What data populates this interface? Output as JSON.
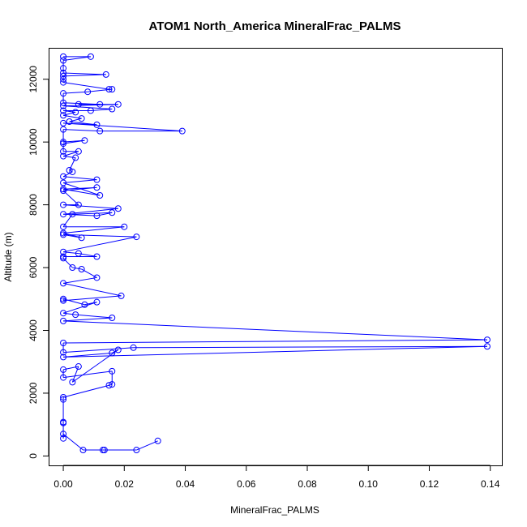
{
  "chart_data": {
    "type": "line",
    "title": "ATOM1 North_America MineralFrac_PALMS",
    "xlabel": "MineralFrac_PALMS",
    "ylabel": "Altitude (m)",
    "xlim": [
      -0.0048,
      0.1438
    ],
    "ylim": [
      -300,
      13000
    ],
    "xticks": [
      0.0,
      0.02,
      0.04,
      0.06,
      0.08,
      0.1,
      0.12,
      0.14
    ],
    "xtick_labels": [
      "0.00",
      "0.02",
      "0.04",
      "0.06",
      "0.08",
      "0.10",
      "0.12",
      "0.14"
    ],
    "yticks": [
      0,
      2000,
      4000,
      6000,
      8000,
      10000,
      12000
    ],
    "ytick_labels": [
      "0",
      "2000",
      "4000",
      "6000",
      "8000",
      "10000",
      "12000"
    ],
    "grid": false,
    "color": "#0000ff",
    "marker": "open-circle",
    "series": [
      {
        "points": [
          [
            0.031,
            480
          ],
          [
            0.024,
            190
          ],
          [
            0.013,
            190
          ],
          [
            0.0135,
            190
          ],
          [
            0.0065,
            190
          ],
          [
            0.0,
            700
          ],
          [
            0.0,
            560
          ],
          [
            0.0,
            1080
          ],
          [
            0.0,
            1050
          ],
          [
            0.0,
            1800
          ],
          [
            0.0,
            1870
          ],
          [
            0.015,
            2250
          ],
          [
            0.016,
            2280
          ],
          [
            0.016,
            2700
          ],
          [
            0.0,
            2500
          ],
          [
            0.0,
            2750
          ],
          [
            0.005,
            2850
          ],
          [
            0.003,
            2350
          ],
          [
            0.018,
            3380
          ],
          [
            0.016,
            3280
          ],
          [
            0.0,
            3150
          ],
          [
            0.139,
            3490
          ],
          [
            0.023,
            3450
          ],
          [
            0.0,
            3300
          ],
          [
            0.0,
            3600
          ],
          [
            0.139,
            3700
          ],
          [
            0.0,
            4300
          ],
          [
            0.016,
            4400
          ],
          [
            0.004,
            4500
          ],
          [
            0.0,
            4550
          ],
          [
            0.011,
            4900
          ],
          [
            0.007,
            4820
          ],
          [
            0.0,
            5000
          ],
          [
            0.0,
            4950
          ],
          [
            0.019,
            5100
          ],
          [
            0.0,
            5500
          ],
          [
            0.011,
            5680
          ],
          [
            0.006,
            5950
          ],
          [
            0.003,
            6000
          ],
          [
            0.0,
            6300
          ],
          [
            0.0,
            6350
          ],
          [
            0.011,
            6350
          ],
          [
            0.005,
            6450
          ],
          [
            0.0,
            6500
          ],
          [
            0.024,
            6980
          ],
          [
            0.0,
            7050
          ],
          [
            0.006,
            6950
          ],
          [
            0.0,
            7100
          ],
          [
            0.02,
            7300
          ],
          [
            0.0,
            7300
          ],
          [
            0.003,
            7700
          ],
          [
            0.016,
            7750
          ],
          [
            0.011,
            7650
          ],
          [
            0.0,
            7700
          ],
          [
            0.018,
            7880
          ],
          [
            0.0,
            8000
          ],
          [
            0.005,
            8000
          ],
          [
            0.0,
            8450
          ],
          [
            0.011,
            8550
          ],
          [
            0.0,
            8500
          ],
          [
            0.012,
            8300
          ],
          [
            0.0,
            8700
          ],
          [
            0.011,
            8800
          ],
          [
            0.0,
            8900
          ],
          [
            0.003,
            9050
          ],
          [
            0.002,
            9100
          ],
          [
            0.004,
            9500
          ],
          [
            0.0,
            9550
          ],
          [
            0.005,
            9700
          ],
          [
            0.0,
            9700
          ],
          [
            0.0,
            9950
          ],
          [
            0.007,
            10050
          ],
          [
            0.0,
            10000
          ],
          [
            0.0,
            10400
          ],
          [
            0.012,
            10350
          ],
          [
            0.039,
            10350
          ],
          [
            0.0,
            10600
          ],
          [
            0.011,
            10550
          ],
          [
            0.002,
            10650
          ],
          [
            0.006,
            10750
          ],
          [
            0.0,
            10850
          ],
          [
            0.004,
            10950
          ],
          [
            0.0,
            11000
          ],
          [
            0.009,
            11000
          ],
          [
            0.016,
            11050
          ],
          [
            0.0,
            11150
          ],
          [
            0.018,
            11200
          ],
          [
            0.005,
            11200
          ],
          [
            0.012,
            11200
          ],
          [
            0.0,
            11250
          ],
          [
            0.0,
            11550
          ],
          [
            0.008,
            11600
          ],
          [
            0.016,
            11680
          ],
          [
            0.015,
            11680
          ],
          [
            0.0,
            11900
          ],
          [
            0.0,
            12000
          ],
          [
            0.0,
            12100
          ],
          [
            0.014,
            12150
          ],
          [
            0.0,
            12200
          ],
          [
            0.0,
            12350
          ],
          [
            0.0,
            12600
          ],
          [
            0.009,
            12720
          ],
          [
            0.0,
            12720
          ]
        ]
      }
    ]
  }
}
